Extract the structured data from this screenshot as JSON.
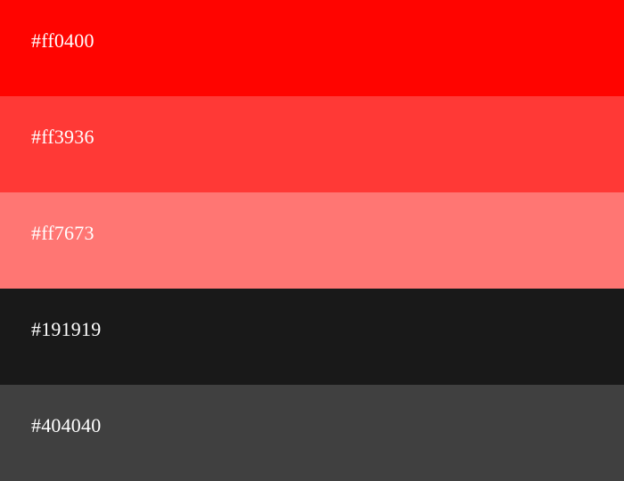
{
  "palette": {
    "swatches": [
      {
        "label": "#ff0400",
        "color": "#ff0400"
      },
      {
        "label": "#ff3936",
        "color": "#ff3936"
      },
      {
        "label": "#ff7673",
        "color": "#ff7673"
      },
      {
        "label": "#191919",
        "color": "#191919"
      },
      {
        "label": "#404040",
        "color": "#404040"
      }
    ]
  }
}
